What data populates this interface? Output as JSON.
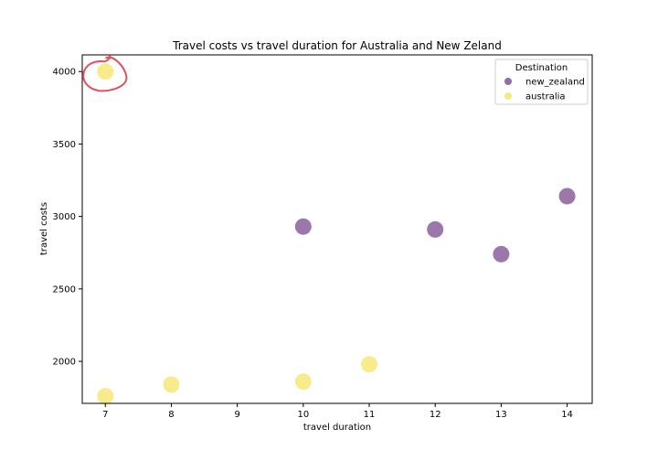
{
  "chart_data": {
    "type": "scatter",
    "title": "Travel costs vs travel duration for Australia and New Zeland",
    "xlabel": "travel duration",
    "ylabel": "travel costs",
    "xlim": [
      6.65,
      14.38
    ],
    "ylim": [
      1710,
      4115
    ],
    "xticks": [
      7,
      8,
      9,
      10,
      11,
      12,
      13,
      14
    ],
    "yticks": [
      2000,
      2500,
      3000,
      3500,
      4000
    ],
    "grid": false,
    "legend": {
      "title": "Destination",
      "placement": "top-right"
    },
    "series": [
      {
        "name": "new_zealand",
        "color": "#7b4a8c",
        "points": [
          {
            "x": 10,
            "y": 2930
          },
          {
            "x": 12,
            "y": 2910
          },
          {
            "x": 13,
            "y": 2740
          },
          {
            "x": 14,
            "y": 3140
          }
        ]
      },
      {
        "name": "australia",
        "color": "#f5e35a",
        "points": [
          {
            "x": 7,
            "y": 4000
          },
          {
            "x": 7,
            "y": 1760
          },
          {
            "x": 8,
            "y": 1840
          },
          {
            "x": 10,
            "y": 1860
          },
          {
            "x": 11,
            "y": 1980
          }
        ]
      }
    ],
    "annotation": {
      "type": "hand-drawn-circle",
      "color": "#e05060",
      "around": {
        "x": 7,
        "y": 4000
      }
    }
  }
}
